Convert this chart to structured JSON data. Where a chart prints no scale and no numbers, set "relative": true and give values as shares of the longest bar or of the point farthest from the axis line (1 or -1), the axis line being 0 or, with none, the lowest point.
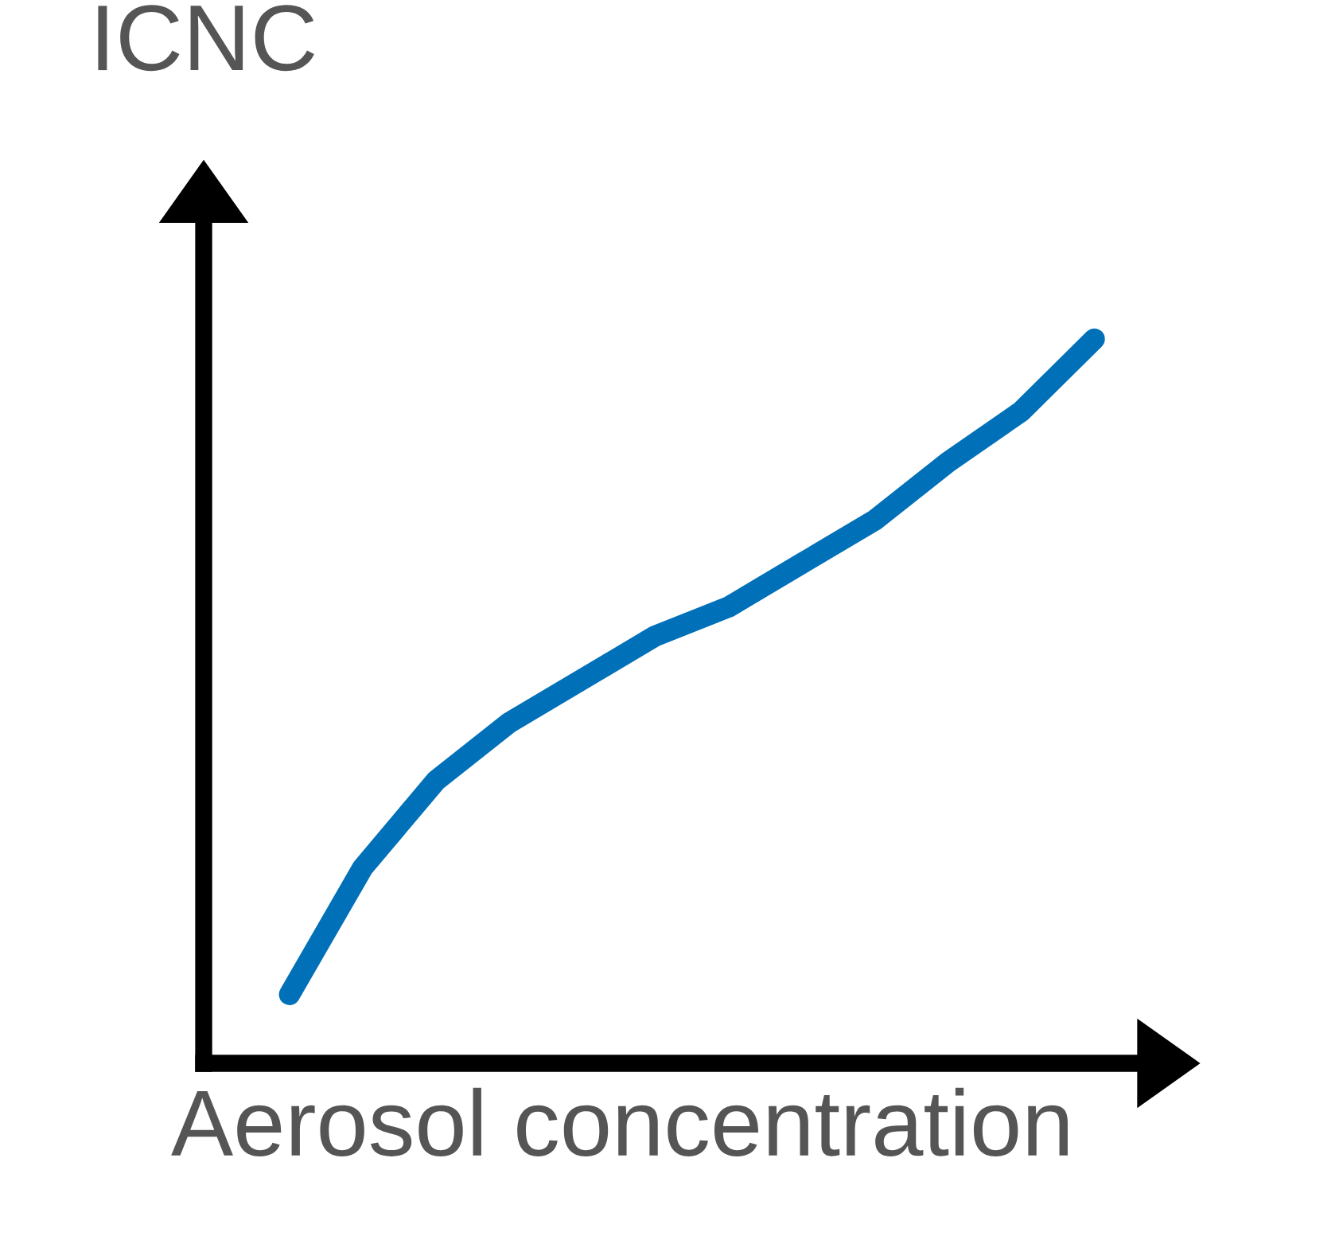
{
  "chart_data": {
    "type": "line",
    "relative": true,
    "xlabel": "Aerosol concentration",
    "ylabel": "ICNC",
    "categories": [
      null,
      null,
      null,
      null,
      null,
      null,
      null,
      null,
      null,
      null,
      null,
      null
    ],
    "series": [
      {
        "color": "#0070b8",
        "values": [
          0.095,
          0.27,
          0.39,
          0.47,
          0.53,
          0.59,
          0.63,
          0.69,
          0.75,
          0.83,
          0.9,
          1.0
        ]
      }
    ]
  }
}
